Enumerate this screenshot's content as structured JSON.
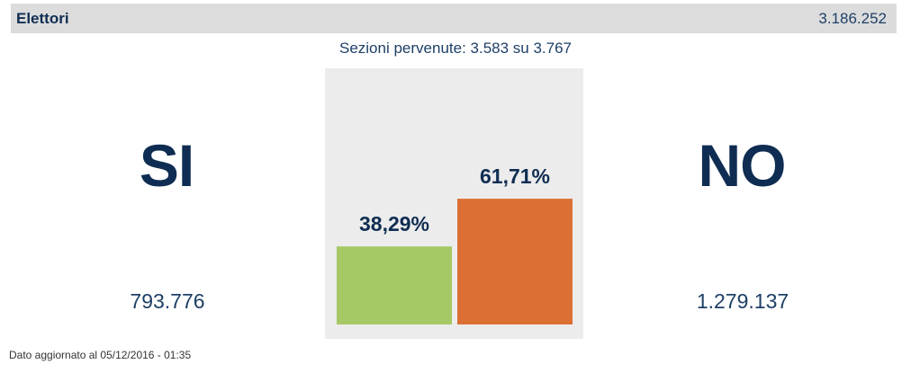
{
  "header": {
    "title": "Elettori",
    "value": "3.186.252"
  },
  "sections_text": "Sezioni pervenute: 3.583 su 3.767",
  "results": {
    "si": {
      "label": "SI",
      "votes": "793.776"
    },
    "no": {
      "label": "NO",
      "votes": "1.279.137"
    }
  },
  "footer": "Dato aggiornato al 05/12/2016 - 01:35",
  "colors": {
    "si": "#a6c865",
    "no": "#dc6f33",
    "panel": "#ececec",
    "text": "#0f2d52"
  },
  "chart_data": {
    "type": "bar",
    "categories": [
      "SI",
      "NO"
    ],
    "values": [
      38.29,
      61.71
    ],
    "data_labels": [
      "38,29%",
      "61,71%"
    ],
    "colors": [
      "#a6c865",
      "#dc6f33"
    ],
    "ylim": [
      0,
      100
    ],
    "grid": false
  }
}
